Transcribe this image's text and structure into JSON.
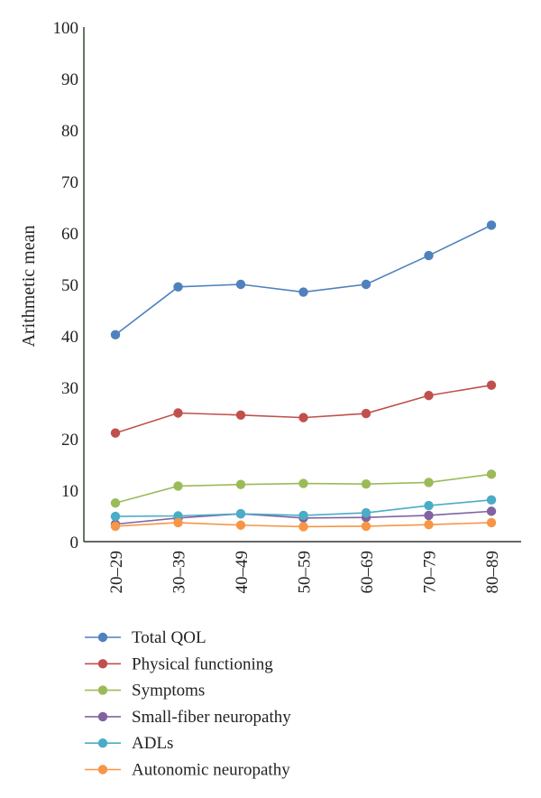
{
  "chart_data": {
    "type": "line",
    "title": "",
    "xlabel": "",
    "ylabel": "Arithmetic mean",
    "ylim": [
      0,
      100
    ],
    "yticks": [
      0,
      10,
      20,
      30,
      40,
      50,
      60,
      70,
      80,
      90,
      100
    ],
    "categories": [
      "20–29",
      "30–39",
      "40–49",
      "50–59",
      "60–69",
      "70–79",
      "80–89"
    ],
    "grid": false,
    "legend_position": "bottom",
    "series": [
      {
        "name": "Total QOL",
        "color": "#4f81bd",
        "values": [
          40.2,
          49.5,
          50.0,
          48.5,
          50.0,
          55.6,
          61.5
        ]
      },
      {
        "name": "Physical functioning",
        "color": "#c0504d",
        "values": [
          21.1,
          25.0,
          24.6,
          24.1,
          24.9,
          28.4,
          30.4
        ]
      },
      {
        "name": "Symptoms",
        "color": "#9bbb59",
        "values": [
          7.5,
          10.8,
          11.1,
          11.3,
          11.2,
          11.5,
          13.1
        ]
      },
      {
        "name": "Small-fiber neuropathy",
        "color": "#8064a2",
        "values": [
          3.4,
          4.6,
          5.4,
          4.6,
          4.7,
          5.1,
          5.9
        ]
      },
      {
        "name": "ADLs",
        "color": "#4bacc6",
        "values": [
          4.9,
          5.0,
          5.4,
          5.1,
          5.6,
          7.0,
          8.1
        ]
      },
      {
        "name": "Autonomic neuropathy",
        "color": "#f79646",
        "values": [
          3.0,
          3.7,
          3.2,
          2.9,
          3.0,
          3.3,
          3.7
        ]
      }
    ]
  }
}
